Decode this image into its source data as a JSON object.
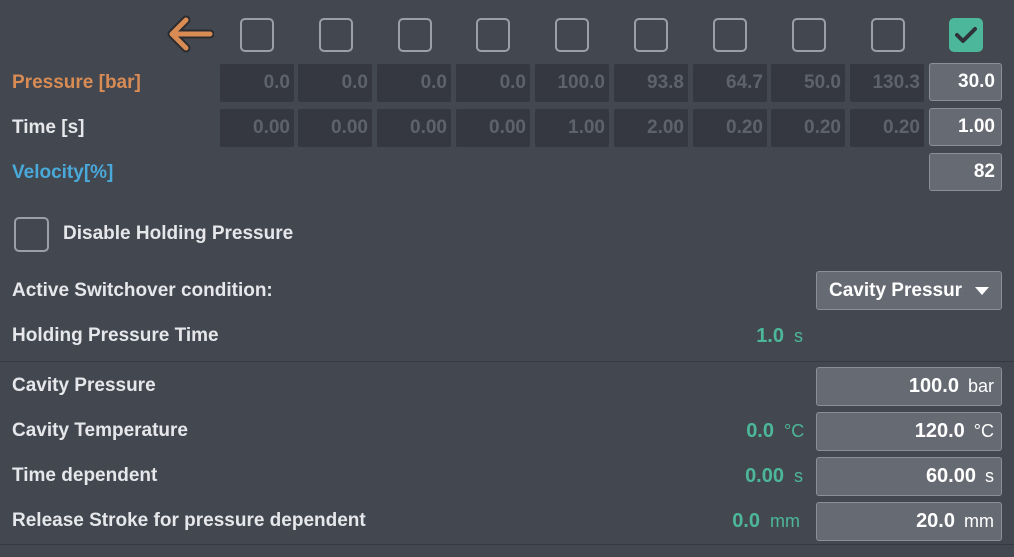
{
  "toolbar": {
    "back_icon": "arrow-left-icon",
    "back_color": "#d98b54"
  },
  "steps": [
    {
      "checked": false
    },
    {
      "checked": false
    },
    {
      "checked": false
    },
    {
      "checked": false
    },
    {
      "checked": false
    },
    {
      "checked": false
    },
    {
      "checked": false
    },
    {
      "checked": false
    },
    {
      "checked": false
    },
    {
      "checked": true
    }
  ],
  "profile": {
    "pressure_label": "Pressure [bar]",
    "time_label": "Time [s]",
    "velocity_label": "Velocity[%]",
    "pressure": [
      "0.0",
      "0.0",
      "0.0",
      "0.0",
      "100.0",
      "93.8",
      "64.7",
      "50.0",
      "130.3",
      "30.0"
    ],
    "time": [
      "0.00",
      "0.00",
      "0.00",
      "0.00",
      "1.00",
      "2.00",
      "0.20",
      "0.20",
      "0.20",
      "1.00"
    ],
    "velocity": "82"
  },
  "disable_holding": {
    "label": "Disable Holding Pressure",
    "checked": false
  },
  "switchover": {
    "label": "Active Switchover condition:",
    "selected": "Cavity Pressure"
  },
  "holding_time": {
    "label": "Holding Pressure Time",
    "actual": "1.0",
    "unit": "s"
  },
  "params": {
    "cavity_pressure": {
      "label": "Cavity Pressure",
      "setpoint": "100.0",
      "unit": "bar"
    },
    "cavity_temperature": {
      "label": "Cavity Temperature",
      "actual": "0.0",
      "actual_unit": "°C",
      "setpoint": "120.0",
      "unit": "°C"
    },
    "time_dependent": {
      "label": "Time dependent",
      "actual": "0.00",
      "actual_unit": "s",
      "setpoint": "60.00",
      "unit": "s"
    },
    "release_stroke": {
      "label": "Release Stroke for pressure dependent",
      "actual": "0.0",
      "actual_unit": "mm",
      "setpoint": "20.0",
      "unit": "mm"
    }
  },
  "colors": {
    "accent_green": "#4cb79a",
    "pressure_orange": "#d98b54",
    "velocity_blue": "#49a9d9",
    "background": "#434750"
  }
}
